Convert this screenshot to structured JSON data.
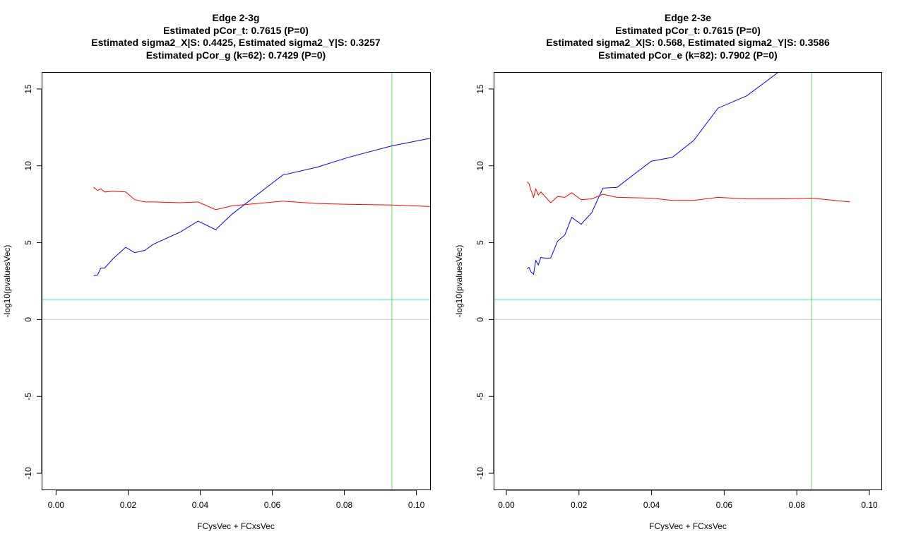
{
  "chart_data": [
    {
      "type": "line",
      "title": "Edge 2-3g",
      "subtitle_lines": [
        "Estimated pCor_t: 0.7615 (P=0)",
        "Estimated sigma2_X|S: 0.4425, Estimated sigma2_Y|S: 0.3257",
        "Estimated pCor_g (k=62): 0.7429 (P=0)"
      ],
      "xlabel": "FCysVec + FCxsVec",
      "ylabel": "-log10(pvaluesVec)",
      "xlim": [
        -0.004,
        0.104
      ],
      "ylim": [
        -11.1,
        16.1
      ],
      "xticks": [
        0.0,
        0.02,
        0.04,
        0.06,
        0.08,
        0.1
      ],
      "xtick_labels": [
        "0.00",
        "0.02",
        "0.04",
        "0.06",
        "0.08",
        "0.10"
      ],
      "yticks": [
        -10,
        -5,
        0,
        5,
        10,
        15
      ],
      "ytick_labels": [
        "-10",
        "-5",
        "0",
        "5",
        "10",
        "15"
      ],
      "hlines": [
        {
          "y": 0,
          "color": "#d3d3d3"
        },
        {
          "y": 1.3,
          "color": "#40e0d0"
        }
      ],
      "vlines": [
        {
          "x": 0.0932,
          "color": "#66dd66"
        }
      ],
      "series": [
        {
          "color": "#0000ff",
          "x": [
            0.0104,
            0.0115,
            0.0124,
            0.0135,
            0.0158,
            0.0193,
            0.0218,
            0.0246,
            0.027,
            0.0345,
            0.0394,
            0.0443,
            0.0488,
            0.0629,
            0.0723,
            0.0811,
            0.0932,
            0.104
          ],
          "y": [
            2.85,
            2.9,
            3.35,
            3.35,
            3.95,
            4.7,
            4.35,
            4.5,
            4.9,
            5.7,
            6.4,
            5.85,
            6.85,
            9.4,
            9.9,
            10.55,
            11.3,
            11.8
          ]
        },
        {
          "color": "#ff0000",
          "x": [
            0.0104,
            0.0115,
            0.0124,
            0.0135,
            0.0158,
            0.0193,
            0.0218,
            0.0246,
            0.027,
            0.0345,
            0.0394,
            0.0443,
            0.0488,
            0.0629,
            0.0723,
            0.0811,
            0.0932,
            0.104
          ],
          "y": [
            8.6,
            8.4,
            8.5,
            8.3,
            8.35,
            8.3,
            7.8,
            7.65,
            7.65,
            7.6,
            7.65,
            7.15,
            7.4,
            7.7,
            7.55,
            7.5,
            7.45,
            7.35
          ]
        }
      ],
      "grid": false
    },
    {
      "type": "line",
      "title": "Edge 2-3e",
      "subtitle_lines": [
        "Estimated pCor_t: 0.7615 (P=0)",
        "Estimated sigma2_X|S: 0.568, Estimated sigma2_Y|S: 0.3586",
        "Estimated pCor_e (k=82): 0.7902 (P=0)"
      ],
      "xlabel": "FCysVec + FCxsVec",
      "ylabel": "-log10(pvaluesVec)",
      "xlim": [
        -0.0035,
        0.1035
      ],
      "ylim": [
        -11.1,
        16.1
      ],
      "xticks": [
        0.0,
        0.02,
        0.04,
        0.06,
        0.08,
        0.1
      ],
      "xtick_labels": [
        "0.00",
        "0.02",
        "0.04",
        "0.06",
        "0.08",
        "0.10"
      ],
      "yticks": [
        -10,
        -5,
        0,
        5,
        10,
        15
      ],
      "ytick_labels": [
        "-10",
        "-5",
        "0",
        "5",
        "10",
        "15"
      ],
      "hlines": [
        {
          "y": 0,
          "color": "#d3d3d3"
        },
        {
          "y": 1.3,
          "color": "#40e0d0"
        }
      ],
      "vlines": [
        {
          "x": 0.0841,
          "color": "#66dd66"
        }
      ],
      "series": [
        {
          "color": "#0000ff",
          "x": [
            0.0057,
            0.0062,
            0.0068,
            0.0075,
            0.0081,
            0.0088,
            0.0095,
            0.0103,
            0.0122,
            0.0141,
            0.0161,
            0.018,
            0.0206,
            0.0235,
            0.0266,
            0.0305,
            0.0399,
            0.0457,
            0.0516,
            0.0583,
            0.0662,
            0.075
          ],
          "y": [
            3.3,
            3.4,
            3.1,
            2.95,
            3.85,
            3.55,
            4.05,
            4.0,
            4.0,
            5.1,
            5.5,
            6.65,
            6.2,
            6.95,
            8.55,
            8.6,
            10.3,
            10.55,
            11.65,
            13.75,
            14.55,
            16.1
          ]
        },
        {
          "color": "#ff0000",
          "x": [
            0.0057,
            0.0062,
            0.0068,
            0.0075,
            0.0081,
            0.0088,
            0.0095,
            0.0103,
            0.0122,
            0.0141,
            0.0161,
            0.018,
            0.0206,
            0.0235,
            0.0266,
            0.0305,
            0.0399,
            0.0457,
            0.0516,
            0.0583,
            0.0662,
            0.075,
            0.0841,
            0.0946
          ],
          "y": [
            8.95,
            8.85,
            8.4,
            7.95,
            8.5,
            8.1,
            8.3,
            8.1,
            7.6,
            8.0,
            7.95,
            8.25,
            7.8,
            7.85,
            8.15,
            7.95,
            7.9,
            7.75,
            7.75,
            7.95,
            7.85,
            7.85,
            7.9,
            7.65
          ]
        }
      ],
      "grid": false
    }
  ]
}
